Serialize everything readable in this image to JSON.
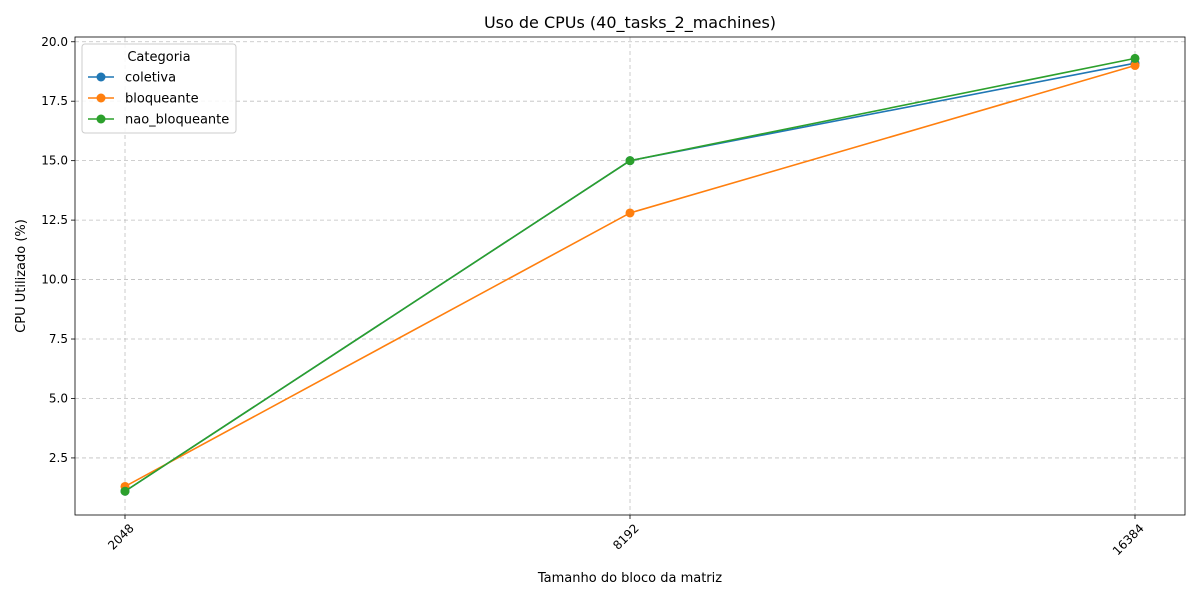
{
  "chart_data": {
    "type": "line",
    "title": "Uso de CPUs (40_tasks_2_machines)",
    "xlabel": "Tamanho do bloco da matriz",
    "ylabel": "CPU Utilizado (%)",
    "categories": [
      "2048",
      "8192",
      "16384"
    ],
    "yticks": [
      "2.5",
      "5.0",
      "7.5",
      "10.0",
      "12.5",
      "15.0",
      "17.5",
      "20.0"
    ],
    "ylim": [
      0.1,
      20.2
    ],
    "grid": true,
    "legend": {
      "title": "Categoria",
      "placement": "top-left"
    },
    "series": [
      {
        "name": "coletiva",
        "color": "#1f77b4",
        "values": [
          1.1,
          15.0,
          19.1
        ]
      },
      {
        "name": "bloqueante",
        "color": "#ff7f0e",
        "values": [
          1.3,
          12.8,
          19.0
        ]
      },
      {
        "name": "nao_bloqueante",
        "color": "#2ca02c",
        "values": [
          1.1,
          15.0,
          19.3
        ]
      }
    ]
  }
}
